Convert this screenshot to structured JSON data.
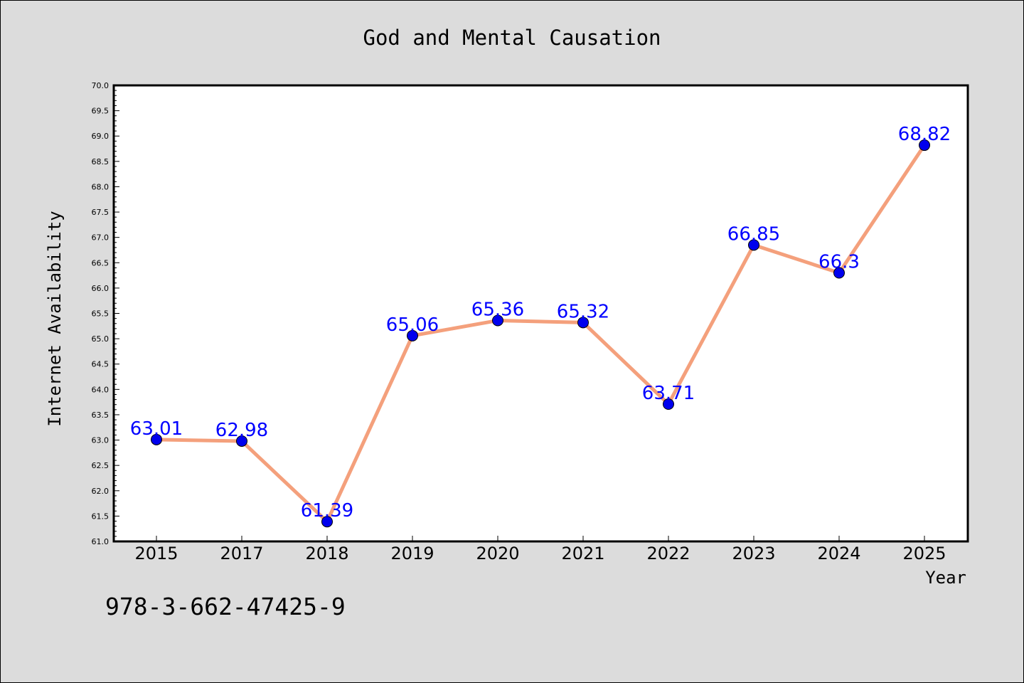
{
  "chart_data": {
    "type": "line",
    "title": "God and Mental Causation",
    "xlabel": "Year",
    "ylabel": "Internet Availability",
    "categories": [
      "2015",
      "2017",
      "2018",
      "2019",
      "2020",
      "2021",
      "2022",
      "2023",
      "2024",
      "2025"
    ],
    "series": [
      {
        "values": [
          63.01,
          62.98,
          61.39,
          65.06,
          65.36,
          65.32,
          63.71,
          66.85,
          66.3,
          68.82
        ],
        "data_labels": [
          "63.01",
          "62.98",
          "61.39",
          "65.06",
          "65.36",
          "65.32",
          "63.71",
          "66.85",
          "66.3",
          "68.82"
        ],
        "line_color": "#f4a07c",
        "marker_color": "#0000ee",
        "label_color": "#0000ff"
      }
    ],
    "ylim": [
      61.0,
      70.0
    ],
    "y_ticks": [
      "61.0",
      "61.5",
      "62.0",
      "62.5",
      "63.0",
      "63.5",
      "64.0",
      "64.5",
      "65.0",
      "65.5",
      "66.0",
      "66.5",
      "67.0",
      "67.5",
      "68.0",
      "68.5",
      "69.0",
      "69.5",
      "70.0"
    ],
    "grid": false,
    "legend": "none"
  },
  "annotation": "978-3-662-47425-9",
  "colors": {
    "background": "#dcdcdc",
    "plot_background": "#ffffff",
    "axis": "#000000"
  }
}
